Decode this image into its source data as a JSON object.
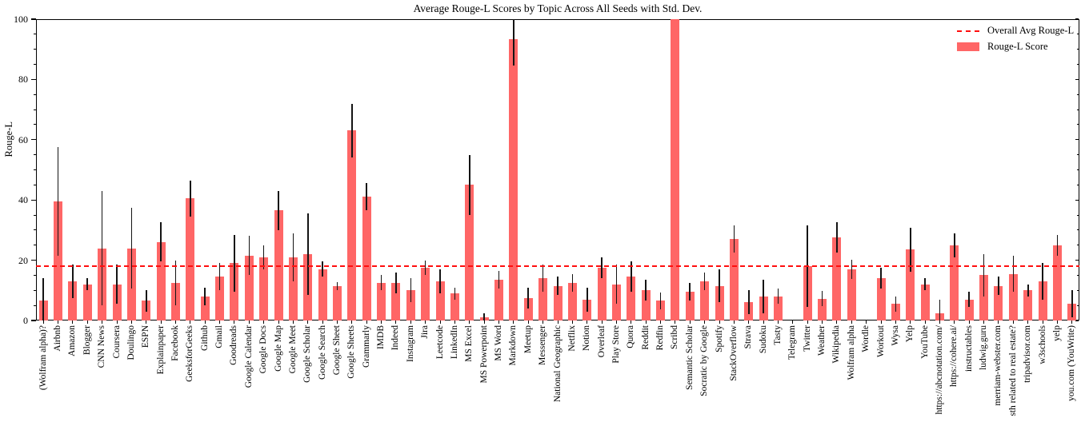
{
  "title": "Average Rouge-L Scores by Topic Across All Seeds with Std. Dev.",
  "legend": {
    "avg_label": "Overall Avg Rouge-L",
    "bar_label": "Rouge-L Score"
  },
  "colors": {
    "bar": "#ff6666",
    "avg_line": "#ff0e0e",
    "error_bar": "#141414",
    "axis": "#000000"
  },
  "chart_data": {
    "type": "bar",
    "title": "Average Rouge-L Scores by Topic Across All Seeds with Std. Dev.",
    "xlabel": "",
    "ylabel": "Rouge-L",
    "ylim": [
      0,
      100
    ],
    "yticks": [
      0,
      20,
      40,
      60,
      80,
      100
    ],
    "yminor_step": 5,
    "grid": false,
    "legend_position": "upper right",
    "legend_entries": [
      "Overall Avg Rouge-L",
      "Rouge-L Score"
    ],
    "avg_line": 18,
    "error_type": "std_dev",
    "categories": [
      "(Wolfram alpha)?",
      "Airbnb",
      "Amazon",
      "Blogger",
      "CNN News",
      "Coursera",
      "Doulingo",
      "ESPN",
      "Explainpaper",
      "Facebook",
      "GeeksforGeeks",
      "Github",
      "Gmail",
      "Goodreads",
      "Google Calendar",
      "Google Docs",
      "Google Map",
      "Google Meet",
      "Google Scholar",
      "Google Search",
      "Google Sheet",
      "Google Sheets",
      "Grammarly",
      "IMDB",
      "Indeed",
      "Instagram",
      "Jira",
      "Leetcode",
      "LinkedIn",
      "MS Excel",
      "MS Powerpoint",
      "MS Word",
      "Markdown",
      "Meetup",
      "Messenger",
      "National Geographic",
      "Netflix",
      "Notion",
      "Overleaf",
      "Play Store",
      "Quora",
      "Reddit",
      "Redfin",
      "Scribd",
      "Semantic Scholar",
      "Socratic by Google",
      "Spotify",
      "StackOverflow",
      "Strava",
      "Sudoku",
      "Tasty",
      "Telegram",
      "Twitter",
      "Weather",
      "Wikipedia",
      "Wolfram alpha",
      "Wordle",
      "Workout",
      "Wysa",
      "Yelp",
      "YouTube",
      "https://abcnotation.com/",
      "https://cohere.ai/",
      "instructables",
      "ludwig.guru",
      "merriam-webster.com",
      "sth related to real estate?",
      "tripadvisor.com",
      "w3schools",
      "yelp",
      "you.com (YouWrite)"
    ],
    "values": [
      6.5,
      39.5,
      13,
      12,
      24,
      12,
      24,
      6.5,
      26,
      12.5,
      40.5,
      8,
      14.5,
      19,
      21.5,
      21,
      36.5,
      21,
      22,
      17,
      11.3,
      63,
      41,
      12.5,
      12.5,
      10,
      17.5,
      13,
      9,
      45,
      1,
      13.5,
      93.5,
      7.5,
      14,
      11.5,
      12.5,
      7,
      17.5,
      12,
      14.5,
      10,
      6.5,
      100,
      9.5,
      13,
      11.5,
      27,
      6,
      8,
      8,
      0,
      18,
      7.2,
      27.5,
      17,
      0,
      14,
      5.5,
      23.5,
      12,
      2.5,
      25,
      7,
      15,
      11.5,
      15.5,
      10,
      13,
      25,
      5.5
    ],
    "errors": [
      7.5,
      18,
      5.5,
      2,
      19,
      6.5,
      13.5,
      3.5,
      6.5,
      7.5,
      6,
      3,
      4.5,
      9.5,
      6.5,
      4,
      6.5,
      8,
      13.5,
      2.5,
      1.3,
      9,
      4.5,
      2.5,
      3.5,
      4,
      2.5,
      4,
      2,
      10,
      1.5,
      3,
      9,
      3.5,
      4.5,
      3,
      3,
      4,
      3.5,
      6.5,
      5,
      3.5,
      2.7,
      0,
      3,
      3,
      5.5,
      4.5,
      4,
      5.5,
      2.5,
      0,
      13.5,
      2.5,
      5,
      3.2,
      0,
      3.5,
      2.5,
      7.3,
      2,
      4.5,
      4,
      2.5,
      7,
      3,
      6,
      2,
      6,
      3.4,
      4.5
    ]
  }
}
